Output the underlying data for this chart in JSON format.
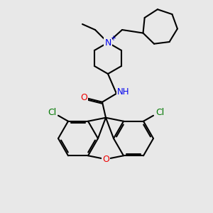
{
  "bg_color": "#e8e8e8",
  "bond_color": "#000000",
  "N_color": "#0000ee",
  "O_color": "#ee0000",
  "Cl_color": "#007700",
  "line_width": 1.5,
  "fig_size": [
    3.0,
    3.0
  ],
  "dpi": 100,
  "xlim": [
    0,
    300
  ],
  "ylim": [
    0,
    300
  ]
}
